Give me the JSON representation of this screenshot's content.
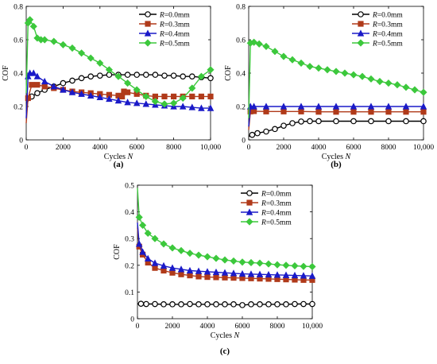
{
  "chart_data": [
    {
      "panel": "(a)",
      "type": "line",
      "xlabel": "Cycles",
      "xlabel_var": "N",
      "ylabel": "COF",
      "xlim": [
        0,
        10000
      ],
      "ylim": [
        0,
        0.8
      ],
      "xticks": [
        0,
        2000,
        4000,
        6000,
        8000,
        10000
      ],
      "xtick_labels": [
        "0",
        "2000",
        "4000",
        "6000",
        "8000",
        "10,000"
      ],
      "yticks": [
        0,
        0.2,
        0.4,
        0.6,
        0.8
      ],
      "ytick_labels": [
        "0",
        "0.2",
        "0.4",
        "0.6",
        "0.8"
      ],
      "legend_position": "top-right",
      "series": [
        {
          "name": "R=0.0mm",
          "color": "#000000",
          "marker": "circle",
          "x": [
            0,
            300,
            600,
            1000,
            1500,
            2000,
            2500,
            3000,
            3500,
            4000,
            4500,
            5000,
            5500,
            6000,
            6500,
            7000,
            7500,
            8000,
            8500,
            9000,
            9500,
            10000
          ],
          "y": [
            0.22,
            0.26,
            0.28,
            0.3,
            0.32,
            0.34,
            0.355,
            0.37,
            0.38,
            0.385,
            0.39,
            0.39,
            0.39,
            0.39,
            0.39,
            0.39,
            0.385,
            0.385,
            0.38,
            0.38,
            0.375,
            0.37
          ]
        },
        {
          "name": "R=0.3mm",
          "color": "#b03a1a",
          "marker": "square",
          "x": [
            0,
            100,
            300,
            600,
            1000,
            1500,
            2000,
            2500,
            3000,
            3500,
            4000,
            4500,
            5000,
            5200,
            5300,
            5500,
            6000,
            6500,
            7000,
            7500,
            8000,
            8500,
            9000,
            9500,
            10000
          ],
          "y": [
            0.1,
            0.25,
            0.33,
            0.33,
            0.32,
            0.31,
            0.3,
            0.29,
            0.285,
            0.28,
            0.275,
            0.27,
            0.265,
            0.26,
            0.29,
            0.285,
            0.275,
            0.265,
            0.26,
            0.26,
            0.26,
            0.26,
            0.26,
            0.26,
            0.26
          ]
        },
        {
          "name": "R=0.4mm",
          "color": "#1a1ac8",
          "marker": "triangle",
          "x": [
            0,
            100,
            200,
            400,
            600,
            1000,
            1500,
            2000,
            2500,
            3000,
            3500,
            4000,
            4500,
            5000,
            5500,
            6000,
            6500,
            7000,
            7500,
            8000,
            8500,
            9000,
            9500,
            10000
          ],
          "y": [
            0.13,
            0.38,
            0.4,
            0.4,
            0.38,
            0.35,
            0.32,
            0.3,
            0.285,
            0.275,
            0.265,
            0.255,
            0.245,
            0.235,
            0.225,
            0.22,
            0.215,
            0.21,
            0.205,
            0.2,
            0.2,
            0.195,
            0.19,
            0.19
          ]
        },
        {
          "name": "R=0.5mm",
          "color": "#3cc83c",
          "marker": "diamond",
          "x": [
            0,
            100,
            200,
            400,
            600,
            800,
            1000,
            1500,
            2000,
            2500,
            3000,
            3500,
            4000,
            4500,
            5000,
            5500,
            6000,
            6500,
            7000,
            7500,
            8000,
            8500,
            9000,
            9500,
            10000
          ],
          "y": [
            0.28,
            0.7,
            0.72,
            0.68,
            0.61,
            0.6,
            0.6,
            0.59,
            0.57,
            0.55,
            0.52,
            0.49,
            0.46,
            0.42,
            0.38,
            0.34,
            0.3,
            0.26,
            0.23,
            0.215,
            0.22,
            0.25,
            0.31,
            0.38,
            0.42
          ]
        }
      ]
    },
    {
      "panel": "(b)",
      "type": "line",
      "xlabel": "Cycles",
      "xlabel_var": "N",
      "ylabel": "COF",
      "xlim": [
        0,
        10000
      ],
      "ylim": [
        0,
        0.8
      ],
      "xticks": [
        0,
        2000,
        4000,
        6000,
        8000,
        10000
      ],
      "xtick_labels": [
        "0",
        "2000",
        "4000",
        "6000",
        "8000",
        "10,000"
      ],
      "yticks": [
        0,
        0.2,
        0.4,
        0.6,
        0.8
      ],
      "ytick_labels": [
        "0",
        "0.2",
        "0.4",
        "0.6",
        "0.8"
      ],
      "legend_position": "top-right",
      "series": [
        {
          "name": "R=0.0mm",
          "color": "#000000",
          "marker": "circle",
          "x": [
            0,
            200,
            500,
            1000,
            1500,
            2000,
            2500,
            3000,
            3500,
            4000,
            5000,
            6000,
            7000,
            8000,
            9000,
            10000
          ],
          "y": [
            0.02,
            0.03,
            0.04,
            0.05,
            0.065,
            0.085,
            0.1,
            0.11,
            0.112,
            0.112,
            0.112,
            0.112,
            0.112,
            0.112,
            0.112,
            0.112
          ]
        },
        {
          "name": "R=0.3mm",
          "color": "#b03a1a",
          "marker": "square",
          "x": [
            0,
            100,
            300,
            1000,
            2000,
            3000,
            4000,
            5000,
            6000,
            7000,
            8000,
            9000,
            10000
          ],
          "y": [
            0.06,
            0.17,
            0.172,
            0.17,
            0.17,
            0.17,
            0.168,
            0.168,
            0.168,
            0.168,
            0.168,
            0.168,
            0.168
          ]
        },
        {
          "name": "R=0.4mm",
          "color": "#1a1ac8",
          "marker": "triangle",
          "x": [
            0,
            100,
            300,
            1000,
            2000,
            3000,
            4000,
            5000,
            6000,
            7000,
            8000,
            9000,
            10000
          ],
          "y": [
            0.08,
            0.2,
            0.2,
            0.2,
            0.2,
            0.2,
            0.2,
            0.2,
            0.2,
            0.2,
            0.2,
            0.2,
            0.2
          ]
        },
        {
          "name": "R=0.5mm",
          "color": "#3cc83c",
          "marker": "diamond",
          "x": [
            0,
            100,
            300,
            600,
            1000,
            1500,
            2000,
            2500,
            3000,
            3500,
            4000,
            4500,
            5000,
            5500,
            6000,
            6500,
            7000,
            7500,
            8000,
            8500,
            9000,
            9500,
            10000
          ],
          "y": [
            0.13,
            0.58,
            0.585,
            0.575,
            0.56,
            0.53,
            0.5,
            0.48,
            0.46,
            0.44,
            0.43,
            0.42,
            0.41,
            0.4,
            0.39,
            0.38,
            0.365,
            0.35,
            0.34,
            0.33,
            0.315,
            0.3,
            0.285
          ]
        }
      ]
    },
    {
      "panel": "(c)",
      "type": "line",
      "xlabel": "Cycles",
      "xlabel_var": "N",
      "ylabel": "COF",
      "xlim": [
        0,
        10000
      ],
      "ylim": [
        0,
        0.5
      ],
      "xticks": [
        0,
        2000,
        4000,
        6000,
        8000,
        10000
      ],
      "xtick_labels": [
        "0",
        "2000",
        "4000",
        "6000",
        "8000",
        "10,000"
      ],
      "yticks": [
        0,
        0.1,
        0.2,
        0.3,
        0.4,
        0.5
      ],
      "ytick_labels": [
        "0",
        "0.1",
        "0.2",
        "0.3",
        "0.4",
        "0.5"
      ],
      "legend_position": "top-right",
      "series": [
        {
          "name": "R=0.0mm",
          "color": "#000000",
          "marker": "circle",
          "x": [
            0,
            200,
            500,
            1000,
            1500,
            2000,
            2500,
            3000,
            3500,
            4000,
            4500,
            5000,
            5500,
            6000,
            6500,
            7000,
            7500,
            8000,
            8500,
            9000,
            9500,
            10000
          ],
          "y": [
            0.055,
            0.056,
            0.055,
            0.055,
            0.054,
            0.054,
            0.054,
            0.055,
            0.054,
            0.054,
            0.054,
            0.054,
            0.054,
            0.051,
            0.054,
            0.054,
            0.054,
            0.054,
            0.054,
            0.055,
            0.055,
            0.055
          ]
        },
        {
          "name": "R=0.3mm",
          "color": "#b03a1a",
          "marker": "square",
          "x": [
            0,
            100,
            300,
            600,
            1000,
            1500,
            2000,
            2500,
            3000,
            3500,
            4000,
            4500,
            5000,
            5500,
            6000,
            6500,
            7000,
            7500,
            8000,
            8500,
            9000,
            9500,
            10000
          ],
          "y": [
            0.34,
            0.27,
            0.24,
            0.21,
            0.19,
            0.18,
            0.172,
            0.166,
            0.162,
            0.158,
            0.156,
            0.155,
            0.154,
            0.153,
            0.152,
            0.151,
            0.15,
            0.149,
            0.148,
            0.147,
            0.146,
            0.145,
            0.145
          ]
        },
        {
          "name": "R=0.4mm",
          "color": "#1a1ac8",
          "marker": "triangle",
          "x": [
            0,
            100,
            300,
            600,
            1000,
            1500,
            2000,
            2500,
            3000,
            3500,
            4000,
            4500,
            5000,
            5500,
            6000,
            6500,
            7000,
            7500,
            8000,
            8500,
            9000,
            9500,
            10000
          ],
          "y": [
            0.36,
            0.28,
            0.25,
            0.225,
            0.208,
            0.198,
            0.19,
            0.185,
            0.18,
            0.178,
            0.176,
            0.174,
            0.172,
            0.17,
            0.168,
            0.167,
            0.166,
            0.165,
            0.164,
            0.163,
            0.162,
            0.161,
            0.16
          ]
        },
        {
          "name": "R=0.5mm",
          "color": "#3cc83c",
          "marker": "diamond",
          "x": [
            0,
            100,
            300,
            600,
            1000,
            1500,
            2000,
            2500,
            3000,
            3500,
            4000,
            4500,
            5000,
            5500,
            6000,
            6500,
            7000,
            7500,
            8000,
            8500,
            9000,
            9500,
            10000
          ],
          "y": [
            0.49,
            0.38,
            0.35,
            0.32,
            0.3,
            0.28,
            0.265,
            0.255,
            0.245,
            0.238,
            0.232,
            0.226,
            0.22,
            0.216,
            0.212,
            0.21,
            0.208,
            0.205,
            0.202,
            0.2,
            0.198,
            0.196,
            0.195
          ]
        }
      ]
    }
  ]
}
